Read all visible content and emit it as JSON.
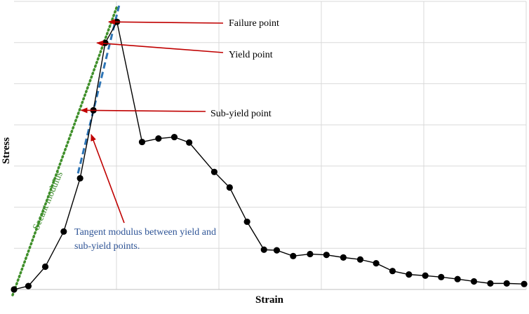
{
  "chart_data": {
    "type": "line",
    "xlabel": "Strain",
    "ylabel": "Stress",
    "xlim": [
      0,
      100
    ],
    "ylim": [
      0,
      100
    ],
    "grid": true,
    "series": [
      {
        "x": [
          0.0,
          2.8,
          6.1,
          9.7,
          12.9,
          15.5,
          17.8,
          20.1,
          25.0,
          28.2,
          31.3,
          34.2,
          39.1,
          42.1,
          45.5,
          48.8,
          51.3,
          54.5,
          57.8,
          61.0,
          64.3,
          67.6,
          70.7,
          73.9,
          77.1,
          80.3,
          83.4,
          86.6,
          89.8,
          93.0,
          96.2,
          99.6
        ],
        "y": [
          0.0,
          1.2,
          7.9,
          20.1,
          38.6,
          62.2,
          85.6,
          92.9,
          51.2,
          52.4,
          52.9,
          51.0,
          40.8,
          35.4,
          23.5,
          13.8,
          13.6,
          11.6,
          12.3,
          12.0,
          11.1,
          10.4,
          9.1,
          6.4,
          5.2,
          4.8,
          4.3,
          3.6,
          2.8,
          2.1,
          2.1,
          1.9
        ]
      }
    ],
    "tangent_line": {
      "x": [
        12.9,
        20.1
      ],
      "y": [
        38.6,
        95.6
      ]
    },
    "secant_line": {
      "x": [
        0.0,
        20.1
      ],
      "y": [
        0.0,
        95.8
      ]
    },
    "annotations": [
      {
        "text": "Failure point",
        "target": [
          17.8,
          92.9
        ]
      },
      {
        "text": "Yield point",
        "target": [
          15.5,
          85.6
        ]
      },
      {
        "text": "Sub-yield point",
        "target": [
          12.4,
          62.2
        ]
      },
      {
        "text": "Tangent modulus between yield and\nsub-yield points.",
        "target": [
          10.7,
          53.8
        ]
      },
      {
        "text": "Secant modulus"
      }
    ]
  },
  "colors": {
    "series": "#000000",
    "arrow": "#c00000",
    "tangent": "#2e75b6",
    "secant": "#3f8f2a",
    "grid": "#d9d9d9"
  }
}
